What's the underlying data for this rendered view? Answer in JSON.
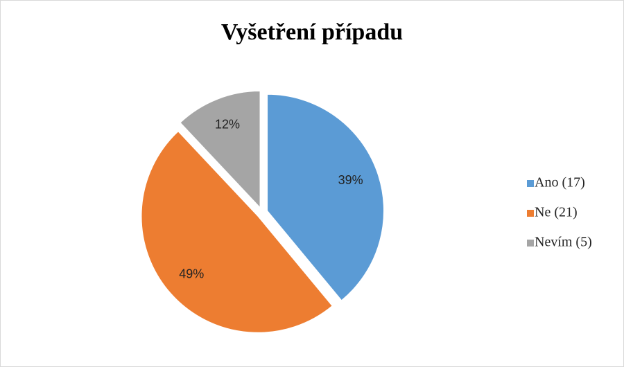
{
  "chart_data": {
    "type": "pie",
    "title": "Vyšetření případu",
    "categories": [
      "Ano (17)",
      "Ne (21)",
      "Nevím (5)"
    ],
    "values": [
      39,
      49,
      12
    ],
    "value_labels": [
      "39%",
      "49%",
      "12%"
    ],
    "colors": [
      "#5b9bd5",
      "#ed7d31",
      "#a5a5a5"
    ],
    "legend": "right"
  }
}
